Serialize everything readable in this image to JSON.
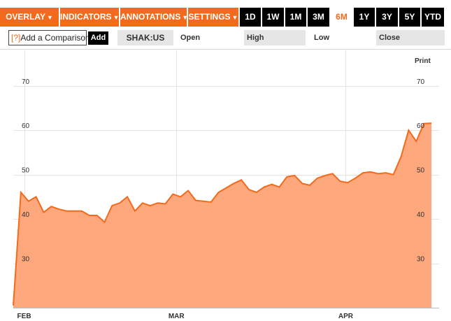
{
  "toolbar": {
    "menus": [
      "OVERLAY",
      "INDICATORS",
      "ANNOTATIONS",
      "SETTINGS"
    ],
    "menu_arrow": "▼",
    "ranges": [
      "1D",
      "1W",
      "1M",
      "3M",
      "6M",
      "1Y",
      "3Y",
      "5Y",
      "YTD"
    ],
    "active_range": "6M"
  },
  "compare": {
    "help": "[?]",
    "label": "Add a Comparison",
    "add": "Add"
  },
  "ticker": "SHAK:US",
  "fields": {
    "open": "Open",
    "high": "High",
    "low": "Low",
    "close": "Close"
  },
  "print_label": "Print",
  "colors": {
    "accent": "#f26a1b",
    "fill": "#fca87c",
    "line": "#f26a1b"
  },
  "chart_data": {
    "type": "area",
    "series": [
      {
        "values": [
          20.5,
          46,
          44,
          45,
          41.5,
          42.8,
          42.2,
          41.8,
          41.8,
          41.8,
          40.8,
          40.8,
          39.3,
          43,
          43.6,
          45,
          41.8,
          43.6,
          43,
          43.6,
          43.4,
          45.6,
          45,
          46.4,
          44.2,
          44,
          43.8,
          46,
          47,
          48,
          48.8,
          46.6,
          46,
          47.2,
          47.8,
          47.2,
          49.5,
          49.8,
          48,
          47.6,
          49.2,
          49.8,
          50.2,
          48.5,
          48.2,
          49.2,
          50.4,
          50.6,
          50.2,
          50.4,
          50,
          54,
          60,
          57.5,
          61.5,
          61.6
        ]
      }
    ],
    "x_labels": [
      "FEB",
      "MAR",
      "APR"
    ],
    "ylim": [
      20,
      78
    ],
    "yticks": [
      30,
      40,
      50,
      60,
      70
    ],
    "grid": true
  }
}
